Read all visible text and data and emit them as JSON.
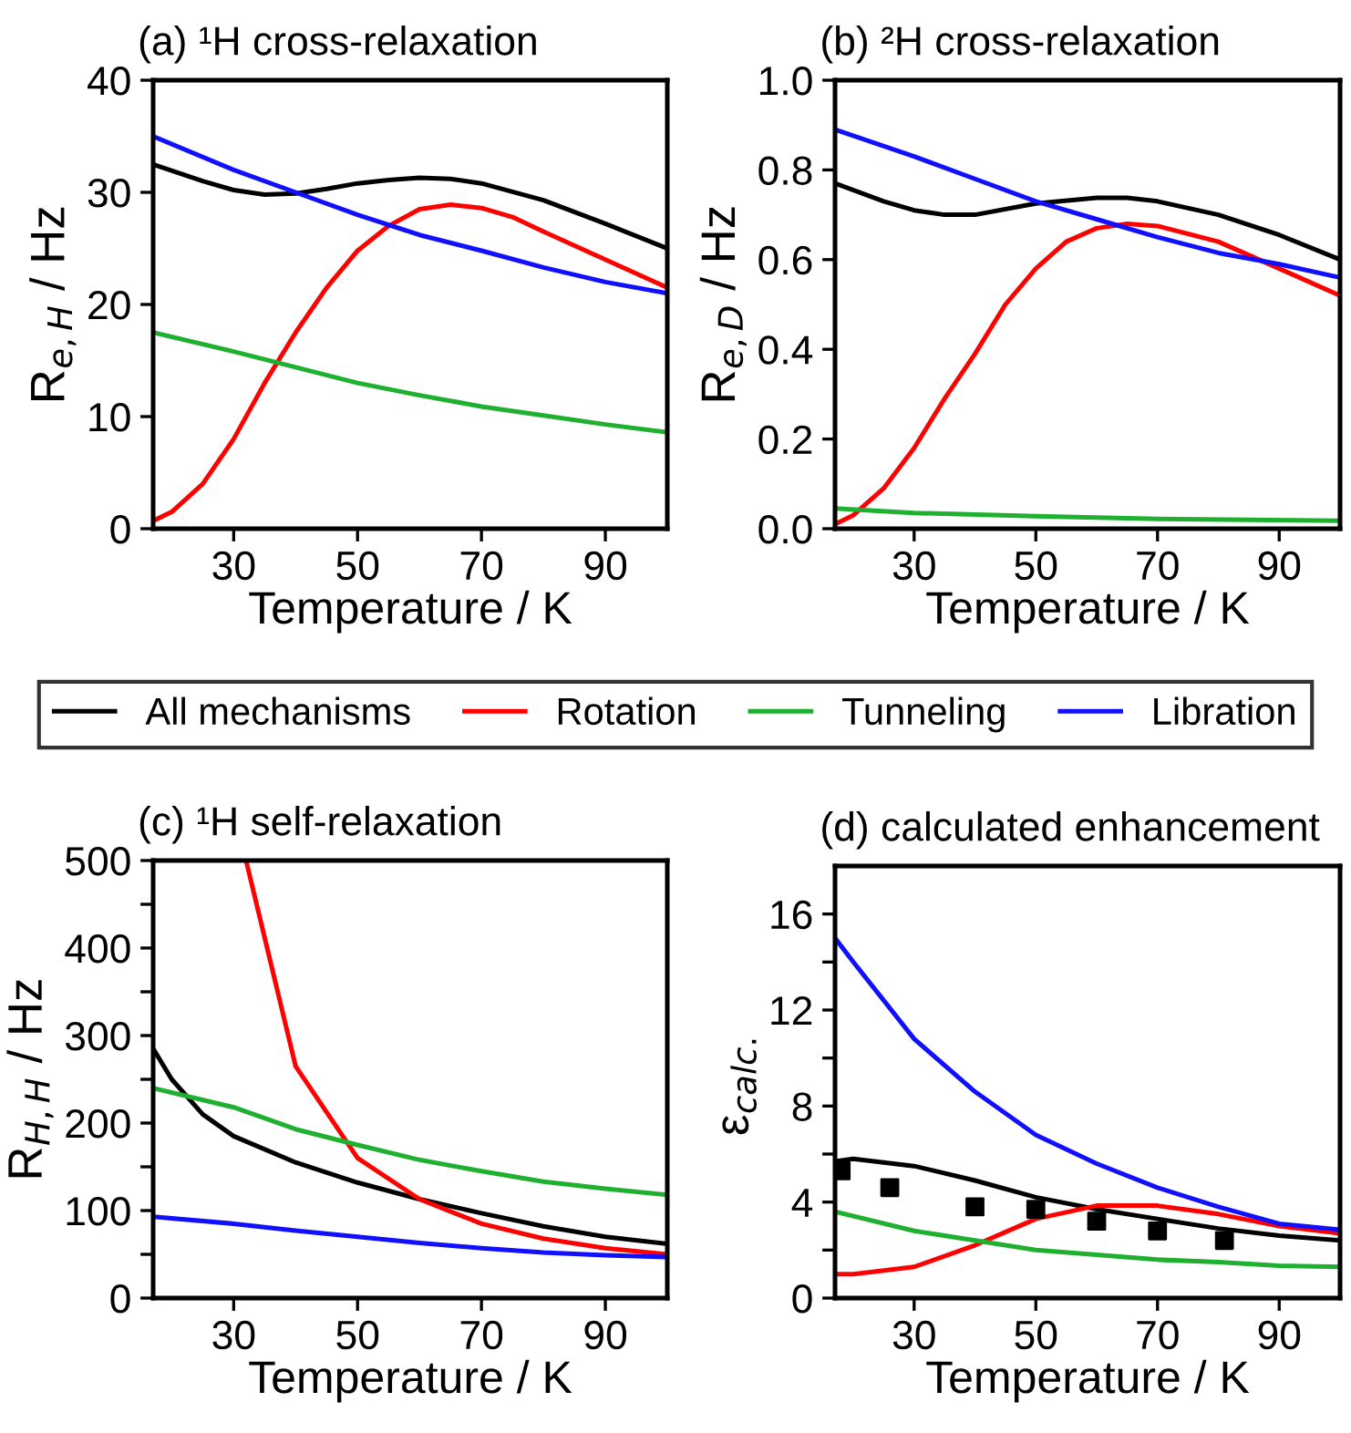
{
  "chart_data": [
    {
      "type": "line",
      "title": "(a) ¹H cross-relaxation",
      "xlabel": "Temperature / K",
      "ylabel": "R$_{e,H}$ / Hz",
      "xlim": [
        17,
        100
      ],
      "ylim": [
        0,
        40
      ],
      "xticks": [
        30,
        50,
        70,
        90
      ],
      "yticks": [
        0,
        10,
        20,
        30,
        40
      ],
      "grid": false,
      "legend": "bottom",
      "series": [
        {
          "name": "All mechanisms",
          "color": "#000000",
          "x": [
            17,
            25,
            30,
            35,
            40,
            45,
            50,
            55,
            60,
            65,
            70,
            80,
            90,
            100
          ],
          "values": [
            32.5,
            31,
            30.2,
            29.8,
            29.9,
            30.3,
            30.8,
            31.1,
            31.3,
            31.2,
            30.8,
            29.3,
            27.2,
            25
          ]
        },
        {
          "name": "Rotation",
          "color": "#ff0000",
          "x": [
            17,
            20,
            25,
            30,
            35,
            40,
            45,
            50,
            55,
            60,
            65,
            70,
            75,
            80,
            90,
            100
          ],
          "values": [
            0.7,
            1.5,
            4,
            8,
            13,
            17.5,
            21.5,
            24.8,
            27,
            28.5,
            28.9,
            28.6,
            27.8,
            26.5,
            24,
            21.5
          ]
        },
        {
          "name": "Tunneling",
          "color": "#1fb030",
          "x": [
            17,
            30,
            40,
            50,
            60,
            70,
            80,
            90,
            100
          ],
          "values": [
            17.5,
            15.8,
            14.4,
            13,
            11.9,
            10.9,
            10.1,
            9.3,
            8.6
          ]
        },
        {
          "name": "Libration",
          "color": "#1010ff",
          "x": [
            17,
            30,
            40,
            50,
            60,
            70,
            80,
            90,
            100
          ],
          "values": [
            35,
            32,
            30,
            28,
            26.2,
            24.8,
            23.3,
            22,
            21
          ]
        }
      ]
    },
    {
      "type": "line",
      "title": "(b) ²H cross-relaxation",
      "xlabel": "Temperature / K",
      "ylabel": "R$_{e,D}$ / Hz",
      "xlim": [
        17,
        100
      ],
      "ylim": [
        0,
        1
      ],
      "xticks": [
        30,
        50,
        70,
        90
      ],
      "yticks": [
        {
          "value": 0,
          "label": "0.0"
        },
        0.2,
        0.4,
        0.6,
        0.8,
        {
          "value": 1,
          "label": "1.0"
        }
      ],
      "grid": false,
      "series": [
        {
          "color": "#000000",
          "x": [
            17,
            25,
            30,
            35,
            40,
            50,
            60,
            65,
            70,
            80,
            90,
            100
          ],
          "values": [
            0.77,
            0.73,
            0.71,
            0.7,
            0.7,
            0.725,
            0.738,
            0.738,
            0.73,
            0.7,
            0.655,
            0.6
          ]
        },
        {
          "color": "#ff0000",
          "x": [
            17,
            20,
            25,
            30,
            35,
            40,
            45,
            50,
            55,
            60,
            65,
            70,
            80,
            90,
            100
          ],
          "values": [
            0.01,
            0.03,
            0.09,
            0.18,
            0.29,
            0.39,
            0.5,
            0.58,
            0.64,
            0.67,
            0.68,
            0.675,
            0.64,
            0.58,
            0.52
          ]
        },
        {
          "color": "#1fb030",
          "x": [
            17,
            30,
            50,
            70,
            100
          ],
          "values": [
            0.045,
            0.035,
            0.028,
            0.022,
            0.018
          ]
        },
        {
          "color": "#1010ff",
          "x": [
            17,
            30,
            40,
            50,
            60,
            70,
            80,
            90,
            100
          ],
          "values": [
            0.89,
            0.83,
            0.78,
            0.73,
            0.69,
            0.65,
            0.615,
            0.59,
            0.56
          ]
        }
      ]
    },
    {
      "type": "line",
      "title": "(c) ¹H self-relaxation",
      "xlabel": "Temperature / K",
      "ylabel": "R$_{H,H}$ / Hz",
      "xlim": [
        17,
        100
      ],
      "ylim": [
        0,
        500
      ],
      "xticks": [
        30,
        50,
        70,
        90
      ],
      "yticks": [
        0,
        {
          "value": 50,
          "label": null
        },
        100,
        {
          "value": 150,
          "label": null
        },
        200,
        {
          "value": 250,
          "label": null
        },
        300,
        {
          "value": 350,
          "label": null
        },
        400,
        {
          "value": 450,
          "label": null
        },
        500
      ],
      "grid": false,
      "series": [
        {
          "color": "#000000",
          "x": [
            17,
            20,
            25,
            30,
            40,
            50,
            60,
            70,
            80,
            90,
            100
          ],
          "values": [
            285,
            250,
            210,
            185,
            155,
            132,
            113,
            97,
            82,
            70,
            62
          ]
        },
        {
          "color": "#ff0000",
          "x": [
            32,
            40,
            50,
            60,
            70,
            80,
            90,
            100
          ],
          "values": [
            500,
            265,
            160,
            113,
            85,
            68,
            57,
            50
          ]
        },
        {
          "color": "#1fb030",
          "x": [
            17,
            30,
            40,
            50,
            60,
            70,
            80,
            90,
            100
          ],
          "values": [
            240,
            218,
            193,
            175,
            158,
            145,
            133,
            125,
            118
          ]
        },
        {
          "color": "#1010ff",
          "x": [
            17,
            30,
            40,
            50,
            60,
            70,
            80,
            90,
            100
          ],
          "values": [
            93,
            85,
            77,
            70,
            63,
            57,
            52,
            49,
            47
          ]
        }
      ]
    },
    {
      "type": "line",
      "title": "(d) calculated enhancement",
      "xlabel": "Temperature / K",
      "ylabel": "ε$_{calc.}$",
      "xlim": [
        17,
        100
      ],
      "ylim": [
        0,
        18
      ],
      "xticks": [
        30,
        50,
        70,
        90
      ],
      "yticks": [
        0,
        {
          "value": 2,
          "label": null
        },
        4,
        {
          "value": 6,
          "label": null
        },
        8,
        {
          "value": 10,
          "label": null
        },
        12,
        {
          "value": 14,
          "label": null
        },
        16
      ],
      "grid": false,
      "series": [
        {
          "color": "#000000",
          "x": [
            17,
            20,
            30,
            40,
            50,
            60,
            70,
            80,
            90,
            100
          ],
          "values": [
            5.7,
            5.8,
            5.5,
            4.9,
            4.2,
            3.7,
            3.3,
            2.9,
            2.6,
            2.4
          ]
        },
        {
          "color": "#ff0000",
          "x": [
            17,
            20,
            30,
            40,
            50,
            60,
            70,
            80,
            90,
            100
          ],
          "values": [
            1.0,
            1.0,
            1.3,
            2.2,
            3.3,
            3.85,
            3.85,
            3.5,
            3.0,
            2.7
          ]
        },
        {
          "color": "#1fb030",
          "x": [
            17,
            30,
            40,
            50,
            60,
            70,
            80,
            90,
            100
          ],
          "values": [
            3.6,
            2.8,
            2.4,
            2.0,
            1.8,
            1.6,
            1.5,
            1.35,
            1.3
          ]
        },
        {
          "color": "#1010ff",
          "x": [
            17,
            20,
            30,
            40,
            50,
            60,
            70,
            80,
            90,
            100
          ],
          "values": [
            15,
            14,
            10.8,
            8.6,
            6.8,
            5.6,
            4.6,
            3.8,
            3.1,
            2.85
          ]
        },
        {
          "type": "scatter",
          "marker": "square",
          "color": "#000000",
          "x": [
            18,
            26,
            40,
            50,
            60,
            70,
            81
          ],
          "values": [
            5.3,
            4.6,
            3.8,
            3.7,
            3.2,
            2.8,
            2.4
          ]
        }
      ]
    }
  ]
}
